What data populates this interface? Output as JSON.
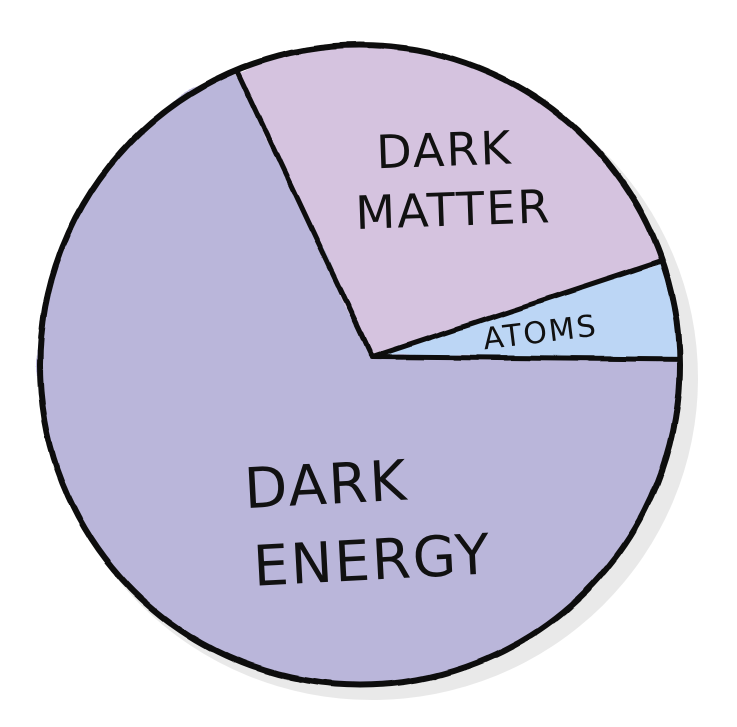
{
  "chart_data": {
    "type": "pie",
    "title": "",
    "slices": [
      {
        "label": "DARK ENERGY",
        "label_lines": [
          "DARK",
          "ENERGY"
        ],
        "value": 69,
        "color": "#bab6da"
      },
      {
        "label": "DARK MATTER",
        "label_lines": [
          "DARK",
          "MATTER"
        ],
        "value": 26,
        "color": "#d5c3df"
      },
      {
        "label": "ATOMS",
        "label_lines": [
          "ATOMS"
        ],
        "value": 5,
        "color": "#bcd6f5"
      }
    ],
    "legend": "none",
    "style": "hand-drawn"
  }
}
